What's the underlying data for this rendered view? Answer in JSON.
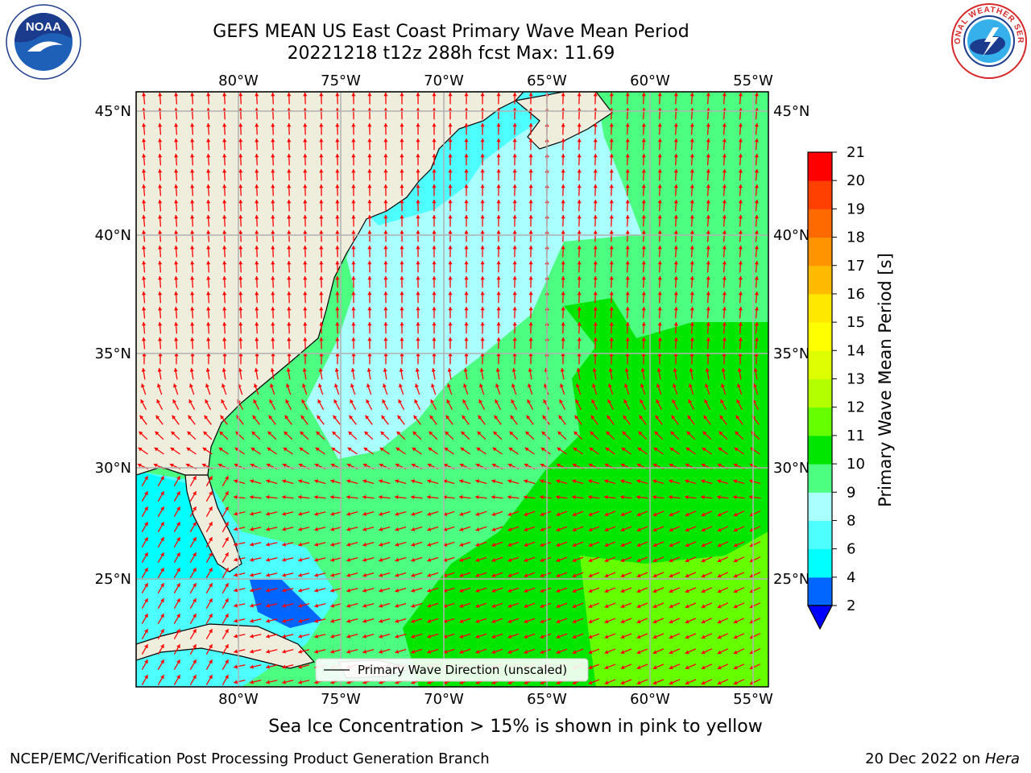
{
  "header": {
    "title_line1": "GEFS MEAN US East Coast Primary Wave Mean Period",
    "title_line2": "20221218 t12z 288h fcst   Max: 11.69"
  },
  "logos": {
    "left": {
      "name": "noaa-logo",
      "text": "NOAA",
      "ring_text": "NATIONAL OCEANIC AND ATMOSPHERIC ADMINISTRATION · U.S. DEPARTMENT OF COMMERCE"
    },
    "right": {
      "name": "nws-logo",
      "ring_text": "NATIONAL WEATHER SERVICE"
    }
  },
  "map": {
    "lon_labels": [
      "80°W",
      "75°W",
      "70°W",
      "65°W",
      "60°W",
      "55°W"
    ],
    "lat_labels": [
      "45°N",
      "40°N",
      "35°N",
      "30°N",
      "25°N"
    ],
    "lon_range": [
      -85,
      -54.3
    ],
    "lat_range": [
      20.5,
      45.8
    ],
    "grid": true,
    "land_color": "#efeddc",
    "arrow_color": "#ff0000",
    "legend": {
      "label": "Primary Wave Direction (unscaled)",
      "placement": "bottom-center"
    }
  },
  "colorbar": {
    "label": "Primary Wave Mean Period [s]",
    "ticks": [
      "2",
      "4",
      "6",
      "8",
      "9",
      "10",
      "11",
      "12",
      "13",
      "14",
      "15",
      "16",
      "17",
      "18",
      "19",
      "20",
      "21"
    ],
    "colors": [
      "#0066ff",
      "#00ffff",
      "#4dffff",
      "#aaffff",
      "#4dff80",
      "#00e600",
      "#66ff00",
      "#b3ff00",
      "#ddff00",
      "#ffff00",
      "#ffe800",
      "#ffbb00",
      "#ff9400",
      "#ff6a00",
      "#ff4000",
      "#ff0000"
    ],
    "under_color": "#0000ff"
  },
  "footer": {
    "note": "Sea Ice Concentration > 15% is shown in pink to yellow",
    "credit": "NCEP/EMC/Verification Post Processing Product Generation Branch",
    "date": "20 Dec 2022 on ",
    "machine": "Hera"
  }
}
